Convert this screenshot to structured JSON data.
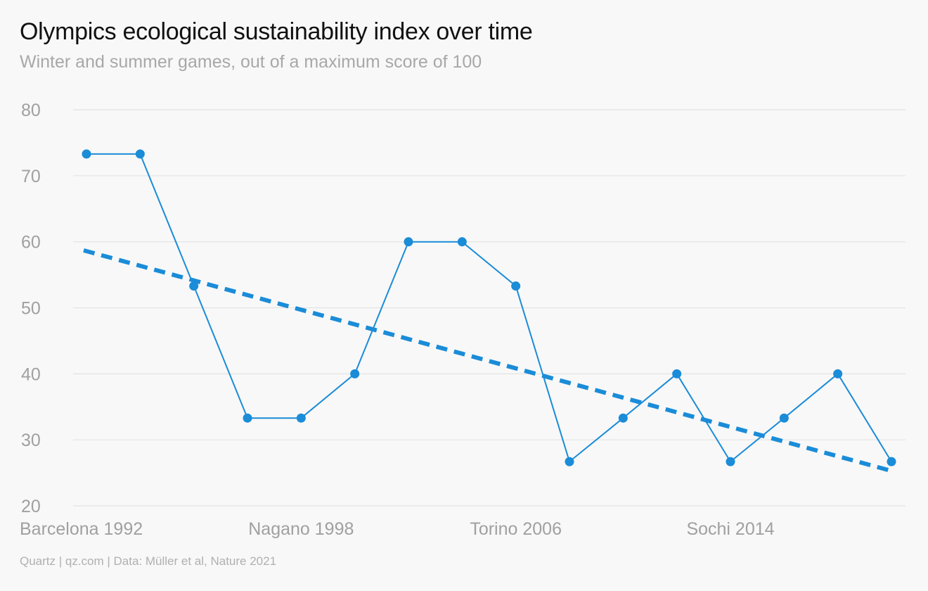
{
  "chart_data": {
    "type": "line",
    "title": "Olympics ecological sustainability index over time",
    "subtitle": "Winter and summer games, out of a maximum score of 100",
    "source": "Quartz | qz.com | Data: Müller et al, Nature 2021",
    "xlabel": "",
    "ylabel": "",
    "ylim": [
      20,
      80
    ],
    "yticks": [
      20,
      30,
      40,
      50,
      60,
      70,
      80
    ],
    "grid": true,
    "x_tick_labels": [
      {
        "index": 0,
        "label": "Barcelona 1992"
      },
      {
        "index": 4,
        "label": "Nagano 1998"
      },
      {
        "index": 8,
        "label": "Torino 2006"
      },
      {
        "index": 12,
        "label": "Sochi 2014"
      }
    ],
    "series": [
      {
        "values": [
          73.3,
          73.3,
          53.3,
          33.3,
          33.3,
          40.0,
          60.0,
          60.0,
          53.3,
          26.7,
          33.3,
          40.0,
          26.7,
          33.3,
          40.0,
          26.7
        ],
        "color": "#1a8cd8",
        "style": "solid",
        "markers": true
      },
      {
        "values_at_ends": [
          58.7,
          25.3
        ],
        "color": "#1a8cd8",
        "style": "dashed",
        "trend": true
      }
    ]
  }
}
